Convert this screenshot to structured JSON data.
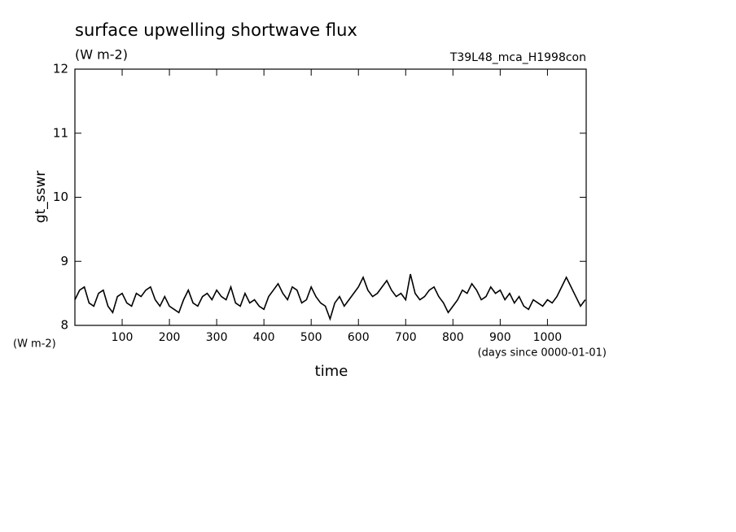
{
  "chart_data": {
    "type": "line",
    "title": "surface upwelling shortwave flux",
    "subtitle": "(W m-2)",
    "run_label": "T39L48_mca_H1998con",
    "y_label": "gt_sswr",
    "y_unit": "(W m-2)",
    "x_label": "time",
    "x_unit": "(days since 0000-01-01)",
    "x": [
      0,
      10,
      20,
      30,
      40,
      50,
      60,
      70,
      80,
      90,
      100,
      110,
      120,
      130,
      140,
      150,
      160,
      170,
      180,
      190,
      200,
      210,
      220,
      230,
      240,
      250,
      260,
      270,
      280,
      290,
      300,
      310,
      320,
      330,
      340,
      350,
      360,
      370,
      380,
      390,
      400,
      410,
      420,
      430,
      440,
      450,
      460,
      470,
      480,
      490,
      500,
      510,
      520,
      530,
      540,
      550,
      560,
      570,
      580,
      590,
      600,
      610,
      620,
      630,
      640,
      650,
      660,
      670,
      680,
      690,
      700,
      710,
      720,
      730,
      740,
      750,
      760,
      770,
      780,
      790,
      800,
      810,
      820,
      830,
      840,
      850,
      860,
      870,
      880,
      890,
      900,
      910,
      920,
      930,
      940,
      950,
      960,
      970,
      980,
      990,
      1000,
      1010,
      1020,
      1030,
      1040,
      1050,
      1060,
      1070,
      1080
    ],
    "series": [
      {
        "name": "gt_sswr",
        "color": "#000000",
        "values": [
          8.4,
          8.55,
          8.6,
          8.35,
          8.3,
          8.5,
          8.55,
          8.3,
          8.2,
          8.45,
          8.5,
          8.35,
          8.3,
          8.5,
          8.45,
          8.55,
          8.6,
          8.4,
          8.3,
          8.45,
          8.3,
          8.25,
          8.2,
          8.4,
          8.55,
          8.35,
          8.3,
          8.45,
          8.5,
          8.4,
          8.55,
          8.45,
          8.4,
          8.6,
          8.35,
          8.3,
          8.5,
          8.35,
          8.4,
          8.3,
          8.25,
          8.45,
          8.55,
          8.65,
          8.5,
          8.4,
          8.6,
          8.55,
          8.35,
          8.4,
          8.6,
          8.45,
          8.35,
          8.3,
          8.1,
          8.35,
          8.45,
          8.3,
          8.4,
          8.5,
          8.6,
          8.75,
          8.55,
          8.45,
          8.5,
          8.6,
          8.7,
          8.55,
          8.45,
          8.5,
          8.4,
          8.8,
          8.5,
          8.4,
          8.45,
          8.55,
          8.6,
          8.45,
          8.35,
          8.2,
          8.3,
          8.4,
          8.55,
          8.5,
          8.65,
          8.55,
          8.4,
          8.45,
          8.6,
          8.5,
          8.55,
          8.4,
          8.5,
          8.35,
          8.45,
          8.3,
          8.25,
          8.4,
          8.35,
          8.3,
          8.4,
          8.35,
          8.45,
          8.6,
          8.75,
          8.6,
          8.45,
          8.3,
          8.4
        ]
      }
    ],
    "xlim": [
      0,
      1082
    ],
    "xticks": [
      100,
      200,
      300,
      400,
      500,
      600,
      700,
      800,
      900,
      1000
    ],
    "ylim": [
      8,
      12
    ],
    "yticks": [
      8,
      9,
      10,
      11,
      12
    ]
  }
}
